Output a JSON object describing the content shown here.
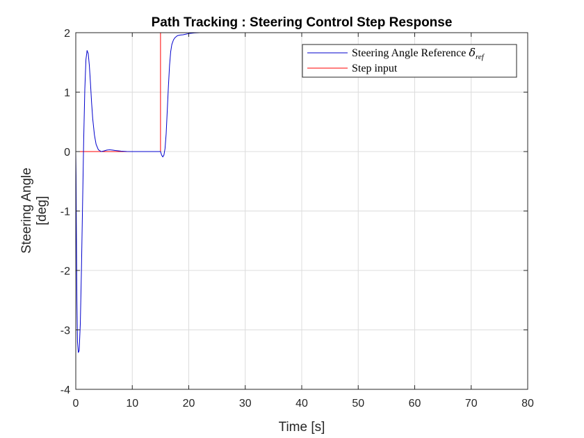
{
  "chart_data": {
    "type": "line",
    "title": "Path Tracking : Steering Control Step Response",
    "xlabel": "Time [s]",
    "ylabel_line1": "Steering Angle",
    "ylabel_line2": "[deg]",
    "xlim": [
      0,
      80
    ],
    "ylim": [
      -4,
      2
    ],
    "xticks": [
      "0",
      "10",
      "20",
      "30",
      "40",
      "50",
      "60",
      "70",
      "80"
    ],
    "yticks": [
      "-4",
      "-3",
      "-2",
      "-1",
      "0",
      "1",
      "2"
    ],
    "grid": true,
    "legend_position": "top-right",
    "legend": {
      "ref_label_main": "Steering Angle Reference ",
      "ref_label_symbol": "δ",
      "ref_label_sub": "ref",
      "step_label": "Step input"
    },
    "series": [
      {
        "name": "Steering Angle Reference δref",
        "color": "#0000cc",
        "x": [
          0,
          0.05,
          0.1,
          0.2,
          0.3,
          0.45,
          0.6,
          0.8,
          1.0,
          1.2,
          1.4,
          1.6,
          1.8,
          2.0,
          2.2,
          2.4,
          2.6,
          2.8,
          3.0,
          3.3,
          3.6,
          4.0,
          4.5,
          5.0,
          5.5,
          6.0,
          6.5,
          7.0,
          8.0,
          9.0,
          10,
          11,
          12,
          13,
          14,
          15.0,
          15.2,
          15.4,
          15.6,
          15.8,
          16.0,
          16.2,
          16.4,
          16.6,
          16.8,
          17.0,
          17.3,
          17.6,
          18.0,
          18.5,
          19.0,
          19.5,
          20.0,
          21.0,
          22.0,
          23.0,
          24.0
        ],
        "y": [
          0,
          -0.4,
          -1.2,
          -2.5,
          -3.2,
          -3.38,
          -3.35,
          -2.9,
          -2.0,
          -0.9,
          0.2,
          1.05,
          1.55,
          1.7,
          1.65,
          1.45,
          1.15,
          0.82,
          0.55,
          0.28,
          0.12,
          0.03,
          0.0,
          0.01,
          0.025,
          0.03,
          0.025,
          0.018,
          0.008,
          0.002,
          0.0,
          0.0,
          0.0,
          0.0,
          0.0,
          0.0,
          -0.06,
          -0.09,
          -0.06,
          0.05,
          0.3,
          0.7,
          1.1,
          1.45,
          1.68,
          1.8,
          1.88,
          1.92,
          1.95,
          1.96,
          1.965,
          1.975,
          1.985,
          1.995,
          2.0,
          2.0,
          2.0
        ]
      },
      {
        "name": "Step input",
        "color": "#ff0000",
        "x": [
          0,
          15,
          15,
          74
        ],
        "y": [
          0,
          0,
          2,
          2
        ]
      }
    ]
  }
}
